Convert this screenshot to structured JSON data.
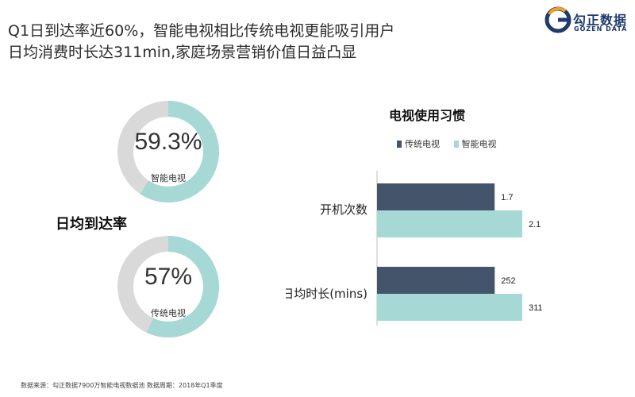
{
  "headline": {
    "line1": "Q1日到达率近60%，智能电视相比传统电视更能吸引用户",
    "line2": "日均消费时长达311min,家庭场景营销价值日益凸显"
  },
  "logo": {
    "text_cn": "勾正数据",
    "text_en": "GOZEN DATA",
    "icon": "gozen-logo-icon"
  },
  "reach": {
    "title": "日均到达率",
    "donuts": [
      {
        "pct_label": "59.3%",
        "value": 59.3,
        "label": "智能电视"
      },
      {
        "pct_label": "57%",
        "value": 57,
        "label": "传统电视"
      }
    ],
    "colors": {
      "fill": "#a6d8d6",
      "track": "#d9d9d9"
    }
  },
  "chart_data": {
    "type": "bar",
    "orientation": "horizontal",
    "title": "电视使用习惯",
    "categories": [
      "开机次数",
      "日均时长(mins)"
    ],
    "series": [
      {
        "name": "传统电视",
        "color": "#44546a",
        "values": [
          1.7,
          252
        ],
        "labels": [
          "1.7",
          "252"
        ]
      },
      {
        "name": "智能电视",
        "color": "#a6d8d6",
        "values": [
          2.1,
          311
        ],
        "labels": [
          "2.1",
          "311"
        ]
      }
    ],
    "category_max": [
      2.1,
      311
    ],
    "legend": "top",
    "grid": false
  },
  "footer": "数据来源：勾正数据7900万智能电视数据池  数据周期：2018年Q1季度"
}
